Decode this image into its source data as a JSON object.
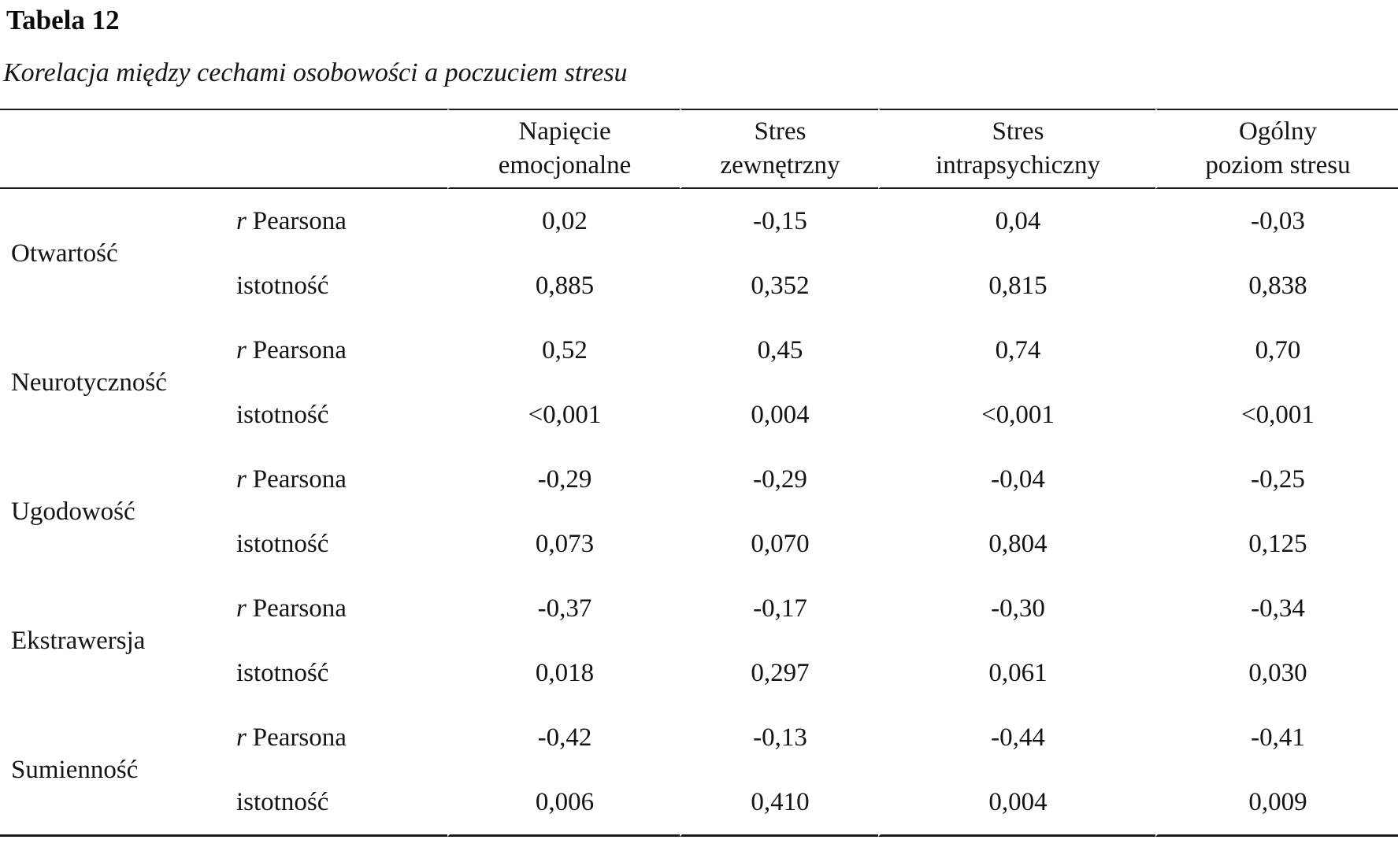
{
  "document": {
    "table_number": "Tabela 12",
    "caption": "Korelacja między cechami osobowości a poczuciem stresu"
  },
  "table": {
    "headers": [
      {
        "line1": "Napięcie",
        "line2": "emocjonalne"
      },
      {
        "line1": "Stres",
        "line2": "zewnętrzny"
      },
      {
        "line1": "Stres",
        "line2": "intrapsychiczny"
      },
      {
        "line1": "Ogólny",
        "line2": "poziom stresu"
      }
    ],
    "measures": {
      "r_symbol": "r",
      "r_word": "Pearsona",
      "significance": "istotność"
    },
    "rows": [
      {
        "trait": "Otwartość",
        "r": [
          "0,02",
          "-0,15",
          "0,04",
          "-0,03"
        ],
        "sig": [
          "0,885",
          "0,352",
          "0,815",
          "0,838"
        ]
      },
      {
        "trait": "Neurotyczność",
        "r": [
          "0,52",
          "0,45",
          "0,74",
          "0,70"
        ],
        "sig": [
          "<0,001",
          "0,004",
          "<0,001",
          "<0,001"
        ]
      },
      {
        "trait": "Ugodowość",
        "r": [
          "-0,29",
          "-0,29",
          "-0,04",
          "-0,25"
        ],
        "sig": [
          "0,073",
          "0,070",
          "0,804",
          "0,125"
        ]
      },
      {
        "trait": "Ekstrawersja",
        "r": [
          "-0,37",
          "-0,17",
          "-0,30",
          "-0,34"
        ],
        "sig": [
          "0,018",
          "0,297",
          "0,061",
          "0,030"
        ]
      },
      {
        "trait": "Sumienność",
        "r": [
          "-0,42",
          "-0,13",
          "-0,44",
          "-0,41"
        ],
        "sig": [
          "0,006",
          "0,410",
          "0,004",
          "0,009"
        ]
      }
    ]
  }
}
